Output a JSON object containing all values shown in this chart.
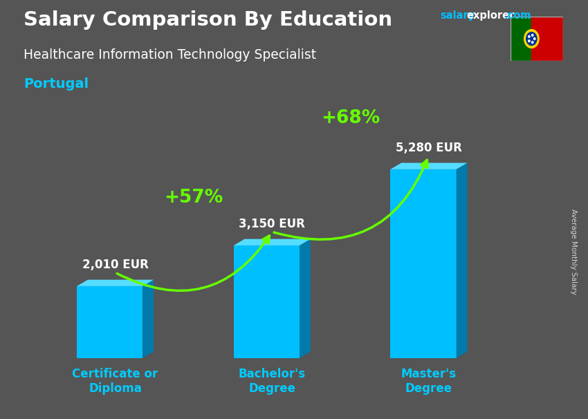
{
  "title": "Salary Comparison By Education",
  "subtitle_job": "Healthcare Information Technology Specialist",
  "subtitle_country": "Portugal",
  "categories": [
    "Certificate or\nDiploma",
    "Bachelor's\nDegree",
    "Master's\nDegree"
  ],
  "values": [
    2010,
    3150,
    5280
  ],
  "value_labels": [
    "2,010 EUR",
    "3,150 EUR",
    "5,280 EUR"
  ],
  "pct_labels": [
    "+57%",
    "+68%"
  ],
  "bar_color_face": "#00BFFF",
  "bar_color_side": "#007AAA",
  "bar_color_top": "#55DDFF",
  "arrow_color": "#66FF00",
  "pct_color": "#66FF00",
  "bg_color": "#555555",
  "title_color": "#ffffff",
  "subtitle_job_color": "#ffffff",
  "subtitle_country_color": "#00CCFF",
  "value_label_color": "#ffffff",
  "xlabel_color": "#00CCFF",
  "ylabel_text": "Average Monthly Salary",
  "website_salary_color": "#00BFFF",
  "website_explorer_color": "#ffffff",
  "figsize": [
    8.5,
    6.06
  ],
  "dpi": 100
}
